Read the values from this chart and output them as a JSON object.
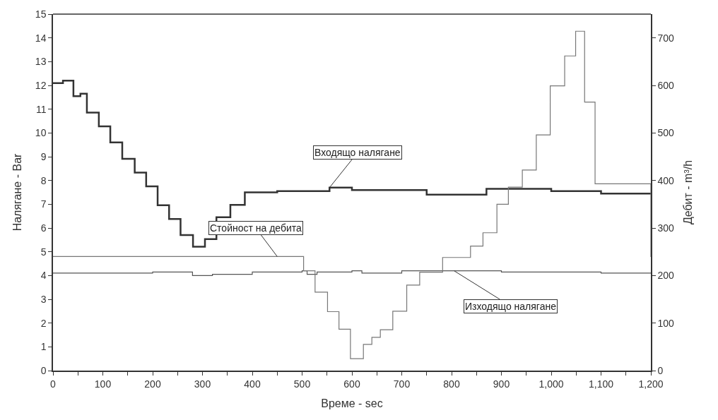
{
  "chart_data": {
    "type": "step",
    "xlabel": "Време - sec",
    "ylabel": "Налягане - Bar",
    "y2label": "Дебит - m³/h",
    "xlim": [
      0,
      1200
    ],
    "xticks": [
      0,
      {
        "value": 50,
        "label": null
      },
      100,
      {
        "value": 150,
        "label": null
      },
      200,
      {
        "value": 250,
        "label": null
      },
      300,
      {
        "value": 350,
        "label": null
      },
      400,
      {
        "value": 450,
        "label": null
      },
      500,
      {
        "value": 550,
        "label": null
      },
      600,
      {
        "value": 650,
        "label": null
      },
      700,
      {
        "value": 750,
        "label": null
      },
      800,
      {
        "value": 850,
        "label": null
      },
      900,
      {
        "value": 950,
        "label": null
      },
      {
        "value": 1000,
        "label": "1,000"
      },
      {
        "value": 1050,
        "label": null
      },
      {
        "value": 1100,
        "label": "1,100"
      },
      {
        "value": 1150,
        "label": null
      },
      {
        "value": 1200,
        "label": "1,200"
      }
    ],
    "ylim": [
      0,
      15
    ],
    "yticks": [
      0,
      1,
      2,
      3,
      4,
      5,
      6,
      7,
      8,
      9,
      10,
      11,
      12,
      13,
      14,
      15
    ],
    "y2lim": [
      0,
      750
    ],
    "y2ticks": [
      0,
      100,
      200,
      300,
      400,
      500,
      600,
      700
    ],
    "marker": "none",
    "line_style": "solid",
    "series": [
      {
        "color": "#333333",
        "x": [
          0,
          20,
          41,
          55,
          68,
          92,
          115,
          139,
          164,
          187,
          210,
          233,
          256,
          281,
          305,
          328,
          356,
          385,
          450,
          555,
          600,
          750,
          870,
          1000,
          1100,
          1200
        ],
        "values": [
          12.1,
          12.2,
          11.55,
          11.65,
          10.86,
          10.28,
          9.6,
          8.91,
          8.33,
          7.75,
          6.96,
          6.38,
          5.7,
          5.21,
          5.53,
          6.45,
          6.97,
          7.5,
          7.55,
          7.7,
          7.6,
          7.4,
          7.65,
          7.55,
          7.45,
          7.45
        ]
      },
      {
        "color": "#777777",
        "axis": "y2",
        "x": [
          0,
          503,
          526,
          551,
          574,
          597,
          623,
          640,
          657,
          682,
          710,
          736,
          782,
          838,
          863,
          891,
          914,
          942,
          970,
          998,
          1027,
          1049,
          1067,
          1088,
          1200
        ],
        "values": [
          240,
          210,
          165,
          124,
          87,
          25,
          55,
          70,
          86,
          125,
          180,
          207,
          238,
          262,
          290,
          350,
          386,
          422,
          496,
          599,
          662,
          714,
          565,
          393,
          239
        ]
      },
      {
        "color": "#555555",
        "x": [
          0,
          100,
          200,
          280,
          320,
          400,
          500,
          510,
          530,
          600,
          620,
          700,
          800,
          900,
          1000,
          1100,
          1200
        ],
        "values": [
          4.1,
          4.1,
          4.15,
          4.0,
          4.05,
          4.15,
          4.2,
          4.05,
          4.15,
          4.2,
          4.1,
          4.2,
          4.2,
          4.15,
          4.15,
          4.1,
          4.1
        ]
      }
    ],
    "annotations": [
      {
        "text": "Входящо налягане",
        "x": 555,
        "y": 7.7
      },
      {
        "text": "Стойност на дебита",
        "x": 450,
        "y": 4.8
      },
      {
        "text": "Изходящо налягане",
        "x": 805,
        "y": 4.2
      }
    ]
  }
}
